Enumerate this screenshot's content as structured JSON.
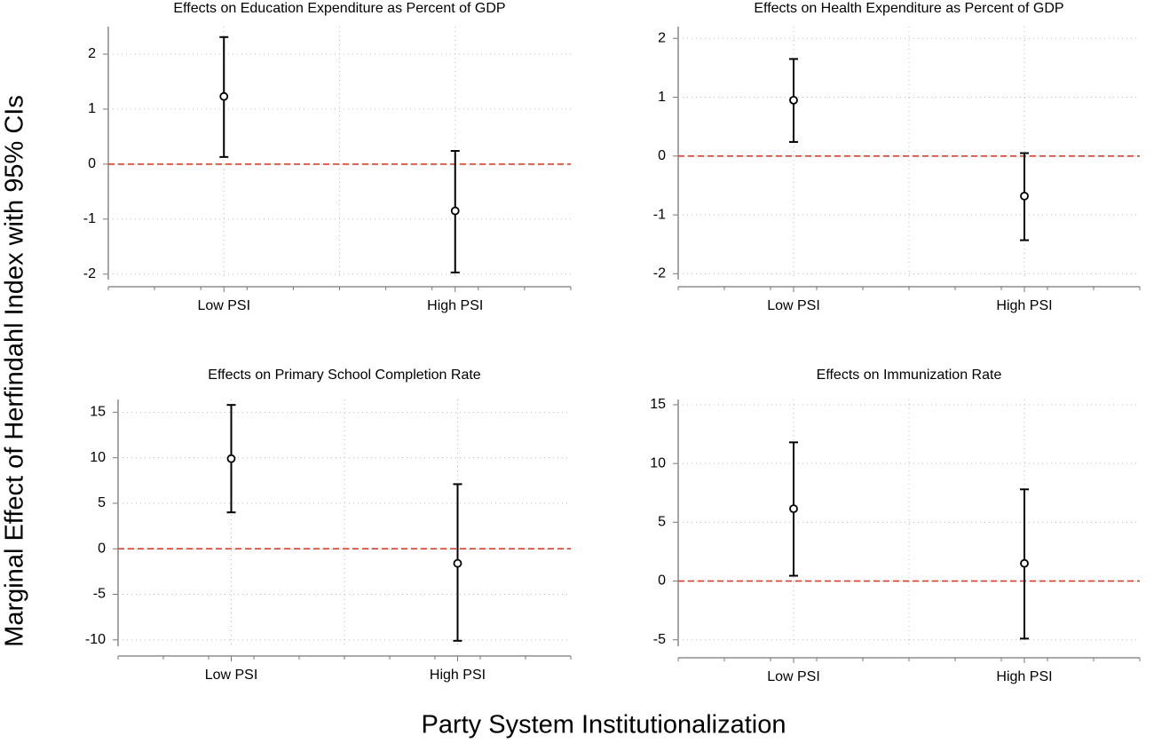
{
  "ylabel": "Marginal Effect of Herfindahl Index with 95% CIs",
  "xlabel": "Party System Institutionalization",
  "chart_data": [
    {
      "type": "errorbar",
      "title": "Effects on Education Expenditure as Percent of GDP",
      "categories": [
        "Low PSI",
        "High PSI"
      ],
      "values": [
        1.23,
        -0.85
      ],
      "ci_low": [
        0.13,
        -1.97
      ],
      "ci_high": [
        2.31,
        0.24
      ],
      "color": "#000000",
      "ylim": [
        -2.1,
        2.5
      ],
      "yticks": [
        -2,
        -1,
        0,
        1,
        2
      ],
      "reference_line": 0,
      "reference_color": "#d9402b",
      "grid": true
    },
    {
      "type": "errorbar",
      "title": "Effects on Health Expenditure as Percent of GDP",
      "categories": [
        "Low PSI",
        "High PSI"
      ],
      "values": [
        0.95,
        -0.68
      ],
      "ci_low": [
        0.24,
        -1.43
      ],
      "ci_high": [
        1.65,
        0.05
      ],
      "color": "#000000",
      "ylim": [
        -2.1,
        2.2
      ],
      "yticks": [
        -2,
        -1,
        0,
        1,
        2
      ],
      "reference_line": 0,
      "reference_color": "#d9402b",
      "grid": true
    },
    {
      "type": "errorbar",
      "title": "Effects on Primary School Completion Rate",
      "categories": [
        "Low PSI",
        "High PSI"
      ],
      "values": [
        9.9,
        -1.6
      ],
      "ci_low": [
        4.0,
        -10.1
      ],
      "ci_high": [
        15.8,
        7.1
      ],
      "color": "#000000",
      "ylim": [
        -10.7,
        16.4
      ],
      "yticks": [
        -10,
        -5,
        0,
        5,
        10,
        15
      ],
      "reference_line": 0,
      "reference_color": "#d9402b",
      "grid": true
    },
    {
      "type": "errorbar",
      "title": "Effects on Immunization Rate",
      "categories": [
        "Low PSI",
        "High PSI"
      ],
      "values": [
        6.15,
        1.5
      ],
      "ci_low": [
        0.45,
        -4.9
      ],
      "ci_high": [
        11.8,
        7.8
      ],
      "color": "#000000",
      "ylim": [
        -5.55,
        15.45
      ],
      "yticks": [
        -5,
        0,
        5,
        10,
        15
      ],
      "reference_line": 0,
      "reference_color": "#d9402b",
      "grid": true
    }
  ]
}
